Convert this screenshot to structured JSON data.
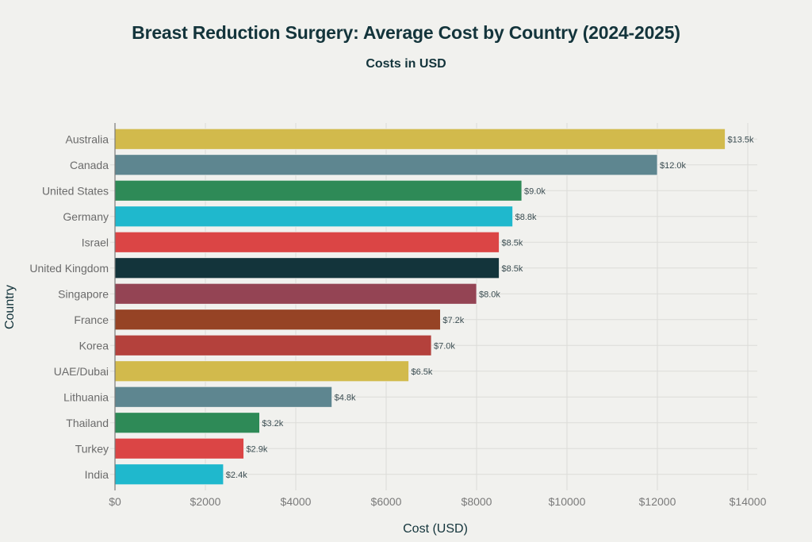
{
  "chart_data": {
    "type": "bar",
    "orientation": "horizontal",
    "title": "Breast Reduction Surgery: Average Cost by Country (2024-2025)",
    "subtitle": "Costs in USD",
    "xlabel": "Cost (USD)",
    "ylabel": "Country",
    "xlim": [
      0,
      14000
    ],
    "x_ticks": [
      0,
      2000,
      4000,
      6000,
      8000,
      10000,
      12000,
      14000
    ],
    "x_tick_labels": [
      "$0",
      "$2000",
      "$4000",
      "$6000",
      "$8000",
      "$10000",
      "$12000",
      "$14000"
    ],
    "grid": true,
    "legend": "none",
    "categories": [
      "Australia",
      "Canada",
      "United States",
      "Germany",
      "Israel",
      "United Kingdom",
      "Singapore",
      "France",
      "Korea",
      "UAE/Dubai",
      "Lithuania",
      "Thailand",
      "Turkey",
      "India"
    ],
    "values": [
      13500,
      12000,
      9000,
      8800,
      8500,
      8500,
      8000,
      7200,
      7000,
      6500,
      4800,
      3200,
      2850,
      2400
    ],
    "data_labels": [
      "$13.5k",
      "$12.0k",
      "$9.0k",
      "$8.8k",
      "$8.5k",
      "$8.5k",
      "$8.0k",
      "$7.2k",
      "$7.0k",
      "$6.5k",
      "$4.8k",
      "$3.2k",
      "$2.9k",
      "$2.4k"
    ],
    "colors": [
      "#d2ba4c",
      "#5e8690",
      "#2e8a57",
      "#1fb8cd",
      "#db4545",
      "#13343b",
      "#944454",
      "#964325",
      "#b4413c",
      "#d2ba4c",
      "#5e8690",
      "#2e8a57",
      "#db4545",
      "#1fb8cd"
    ]
  }
}
